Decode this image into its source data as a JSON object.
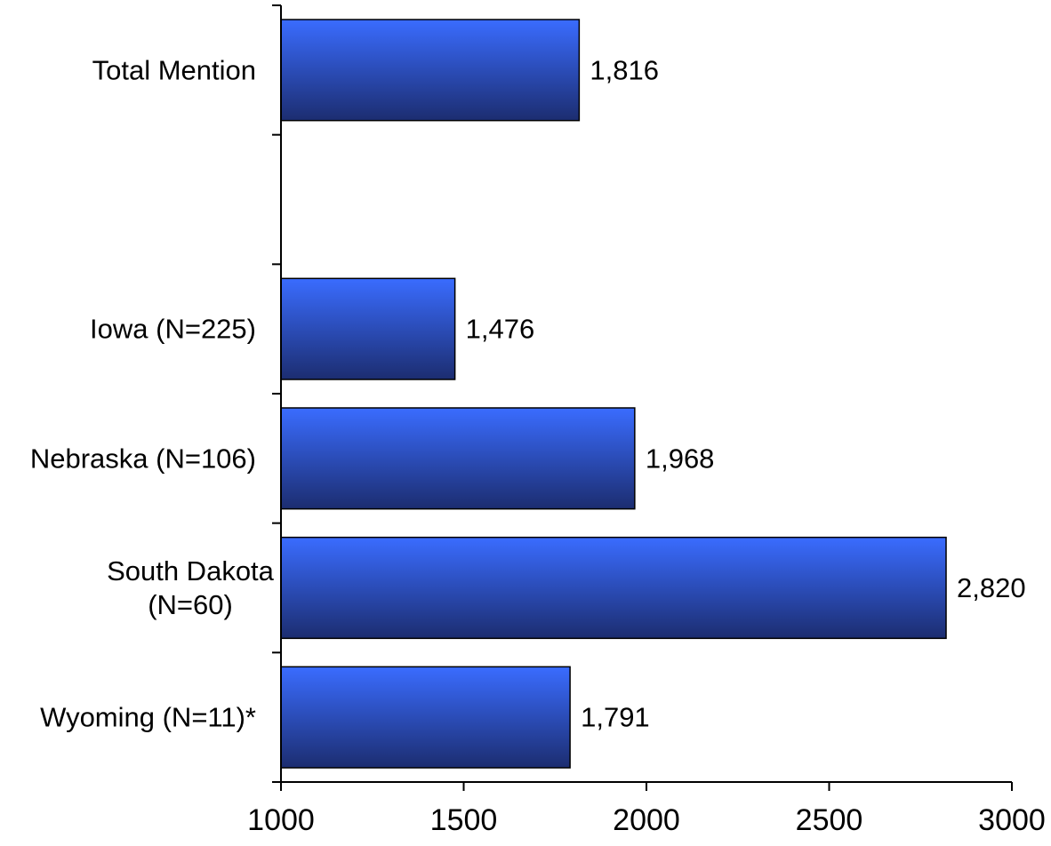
{
  "chart_data": {
    "type": "bar",
    "orientation": "horizontal",
    "categories": [
      [
        "Total Mention"
      ],
      [
        "Iowa (N=225)"
      ],
      [
        "Nebraska (N=106)"
      ],
      [
        "South Dakota",
        "(N=60)"
      ],
      [
        "Wyoming (N=11)*"
      ]
    ],
    "values": [
      1816,
      1476,
      1968,
      2820,
      1791
    ],
    "value_labels": [
      "1,816",
      "1,476",
      "1,968",
      "2,820",
      "1,791"
    ],
    "xlim": [
      1000,
      3000
    ],
    "xticks": [
      1000,
      1500,
      2000,
      2500,
      3000
    ],
    "xtick_labels": [
      "1000",
      "1500",
      "2000",
      "2500",
      "3000"
    ],
    "slot_order": [
      0,
      null,
      1,
      2,
      3,
      4
    ],
    "grid": false,
    "legend": "none",
    "bar_colors": {
      "top": "#3a6cff",
      "bottom": "#1c2d70",
      "stroke": "#000000"
    }
  }
}
